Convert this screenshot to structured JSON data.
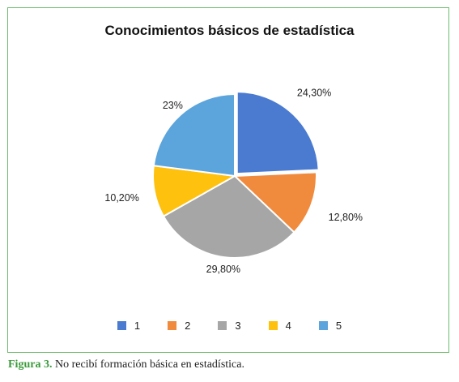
{
  "chart_data": {
    "type": "pie",
    "title": "Conocimientos básicos de estadística",
    "categories": [
      "1",
      "2",
      "3",
      "4",
      "5"
    ],
    "values": [
      24.3,
      12.8,
      29.8,
      10.2,
      23
    ],
    "labels": [
      "24,30%",
      "12,80%",
      "29,80%",
      "10,20%",
      "23%"
    ],
    "colors": [
      "#4a7bd0",
      "#f08a3c",
      "#a6a6a6",
      "#fec10e",
      "#5ba4dc"
    ],
    "legend": "bottom",
    "exploded": [
      true,
      false,
      false,
      false,
      false
    ]
  },
  "caption": {
    "label": "Figura 3.",
    "text": " No recibí formación básica en estadística."
  },
  "colors": {
    "frame_border": "#6dbb6d",
    "caption_label": "#3a9a3a"
  }
}
